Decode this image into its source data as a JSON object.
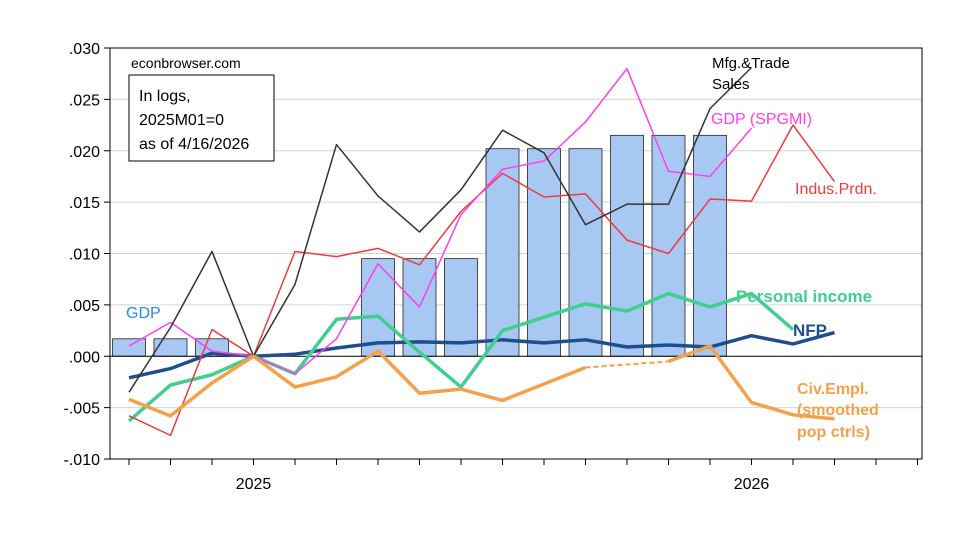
{
  "source": "econbrowser.com",
  "note_lines": [
    "In logs,",
    "2025M01=0",
    "as of 4/16/2026"
  ],
  "colors": {
    "gdp_bars": "#a8c8f4",
    "bar_edge": "#222222",
    "nfp": "#1f4e8c",
    "personal_income": "#3fcf8e",
    "industrial_production": "#ee3b3b",
    "gdp_spgmi": "#ff3ef0",
    "mfg_trade_sales": "#333333",
    "civ_empl": "#f5a04a"
  },
  "chart_data": {
    "type": "line",
    "ylim": [
      -0.01,
      0.03
    ],
    "y_ticks": [
      ".030",
      ".025",
      ".020",
      ".015",
      ".010",
      ".005",
      ".000",
      "-.005",
      "-.010"
    ],
    "y_tick_values": [
      0.03,
      0.025,
      0.02,
      0.015,
      0.01,
      0.005,
      0.0,
      -0.005,
      -0.01
    ],
    "x_tick_labels": [
      "2025",
      "2026"
    ],
    "x": [
      "2024-10",
      "2024-11",
      "2024-12",
      "2025-01",
      "2025-02",
      "2025-03",
      "2025-04",
      "2025-05",
      "2025-06",
      "2025-07",
      "2025-08",
      "2025-09",
      "2025-10",
      "2025-11",
      "2025-12",
      "2026-01",
      "2026-02",
      "2026-03",
      "2026-04",
      "2026-05"
    ],
    "gdp_bars": {
      "name": "GDP",
      "x": [
        "2024-10",
        "2024-11",
        "2024-12",
        "2025-04",
        "2025-05",
        "2025-06",
        "2025-07",
        "2025-08",
        "2025-09",
        "2025-10",
        "2025-11",
        "2025-12"
      ],
      "values": [
        0.0017,
        0.0017,
        0.0017,
        0.0095,
        0.0095,
        0.0095,
        0.0202,
        0.0202,
        0.0202,
        0.0215,
        0.0215,
        0.0215
      ]
    },
    "series": [
      {
        "key": "nfp",
        "name": "NFP",
        "x": [
          "2024-10",
          "2024-11",
          "2024-12",
          "2025-01",
          "2025-02",
          "2025-03",
          "2025-04",
          "2025-05",
          "2025-06",
          "2025-07",
          "2025-08",
          "2025-09",
          "2025-10",
          "2025-11",
          "2025-12",
          "2026-01",
          "2026-02",
          "2026-03"
        ],
        "values": [
          -0.0021,
          -0.0012,
          0.0003,
          0.0,
          0.0002,
          0.0008,
          0.0013,
          0.0014,
          0.0013,
          0.0016,
          0.0013,
          0.0016,
          0.0009,
          0.0011,
          0.0009,
          0.002,
          0.0012,
          0.0023
        ]
      },
      {
        "key": "personal_income",
        "name": "Personal income",
        "x": [
          "2024-10",
          "2024-11",
          "2024-12",
          "2025-01",
          "2025-02",
          "2025-03",
          "2025-04",
          "2025-05",
          "2025-06",
          "2025-07",
          "2025-08",
          "2025-09",
          "2025-10",
          "2025-11",
          "2025-12",
          "2026-01",
          "2026-02"
        ],
        "values": [
          -0.0063,
          -0.0028,
          -0.0018,
          0.0,
          -0.0017,
          0.0036,
          0.0039,
          0.0004,
          -0.003,
          0.0025,
          0.0038,
          0.0051,
          0.0044,
          0.0061,
          0.0048,
          0.0061,
          0.0026
        ]
      },
      {
        "key": "industrial_production",
        "name": "Indus.Prdn.",
        "x": [
          "2024-10",
          "2024-11",
          "2024-12",
          "2025-01",
          "2025-02",
          "2025-03",
          "2025-04",
          "2025-05",
          "2025-06",
          "2025-07",
          "2025-08",
          "2025-09",
          "2025-10",
          "2025-11",
          "2025-12",
          "2026-01",
          "2026-02",
          "2026-03"
        ],
        "values": [
          -0.0058,
          -0.0077,
          0.0026,
          0.0,
          0.0102,
          0.0097,
          0.0105,
          0.0089,
          0.0141,
          0.0178,
          0.0155,
          0.0158,
          0.0113,
          0.01,
          0.0153,
          0.0151,
          0.0225,
          0.017
        ]
      },
      {
        "key": "gdp_spgmi",
        "name": "GDP (SPGMI)",
        "x": [
          "2024-10",
          "2024-11",
          "2024-12",
          "2025-01",
          "2025-02",
          "2025-03",
          "2025-04",
          "2025-05",
          "2025-06",
          "2025-07",
          "2025-08",
          "2025-09",
          "2025-10",
          "2025-11",
          "2025-12",
          "2026-01"
        ],
        "values": [
          0.001,
          0.0033,
          0.0005,
          0.0,
          -0.0017,
          0.0017,
          0.009,
          0.0048,
          0.0138,
          0.0182,
          0.019,
          0.0228,
          0.028,
          0.018,
          0.0175,
          0.0222
        ]
      },
      {
        "key": "mfg_trade_sales",
        "name": "Mfg.&Trade Sales",
        "x": [
          "2024-10",
          "2024-11",
          "2024-12",
          "2025-01",
          "2025-02",
          "2025-03",
          "2025-04",
          "2025-05",
          "2025-06",
          "2025-07",
          "2025-08",
          "2025-09",
          "2025-10",
          "2025-11",
          "2025-12",
          "2026-01"
        ],
        "values": [
          -0.0035,
          0.0028,
          0.0102,
          0.0,
          0.007,
          0.0206,
          0.0156,
          0.0121,
          0.0162,
          0.022,
          0.0198,
          0.0128,
          0.0148,
          0.0148,
          0.0241,
          0.0281
        ]
      },
      {
        "key": "civ_empl",
        "name": "Civ.Empl. (smoothed pop ctrls)",
        "x": [
          "2024-10",
          "2024-11",
          "2024-12",
          "2025-01",
          "2025-02",
          "2025-03",
          "2025-04",
          "2025-05",
          "2025-06",
          "2025-07",
          "2025-08",
          "2025-09",
          "2025-10",
          "2025-11",
          "2025-12",
          "2026-01",
          "2026-02",
          "2026-03"
        ],
        "values": [
          -0.0042,
          -0.0058,
          -0.0026,
          0.0,
          -0.003,
          -0.002,
          0.0005,
          -0.0036,
          -0.0032,
          -0.0043,
          -0.0027,
          -0.0011,
          null,
          -0.0005,
          0.001,
          -0.0045,
          -0.0057,
          -0.0061
        ],
        "dashed_segment": [
          "2025-09",
          "2025-11"
        ]
      }
    ]
  },
  "labels": {
    "gdp": "GDP",
    "nfp": "NFP",
    "personal_income": "Personal income",
    "industrial_production": "Indus.Prdn.",
    "gdp_spgmi": "GDP (SPGMI)",
    "mfg_line1": "Mfg.&Trade",
    "mfg_line2": "Sales",
    "civ_line1": "Civ.Empl.",
    "civ_line2": "(smoothed",
    "civ_line3": "pop ctrls)"
  }
}
